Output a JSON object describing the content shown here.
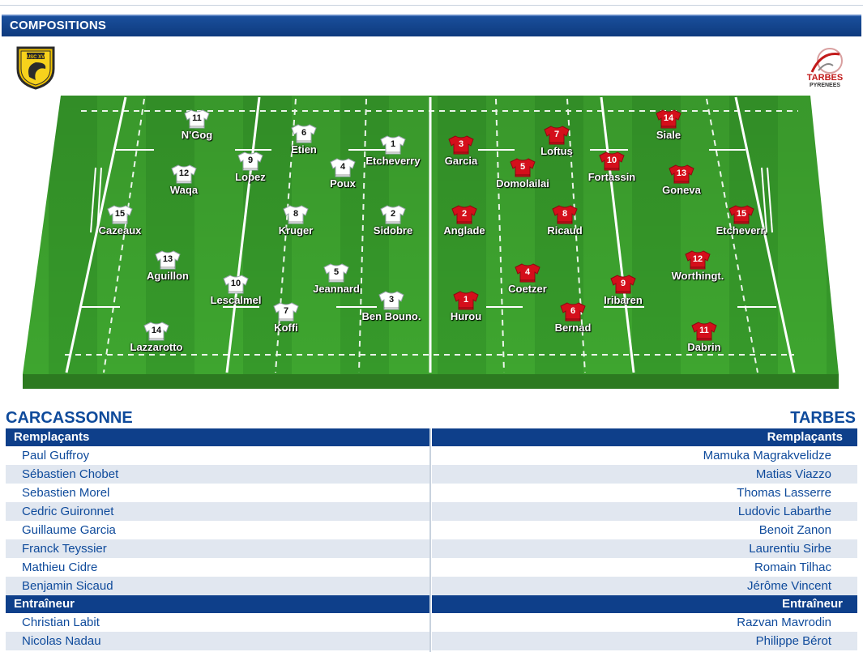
{
  "header": {
    "title": "COMPOSITIONS"
  },
  "logos": {
    "home": {
      "icon": "usc-xv-shield-logo",
      "text": "USC XV"
    },
    "away": {
      "icon": "tarbes-pyrenees-logo",
      "text_line1": "TARBES",
      "text_line2": "PYRENEES"
    }
  },
  "colors": {
    "home_jersey": "#ffffff",
    "away_jersey": "#d40f1b",
    "pitch": "#3aa12e",
    "header": "#0e3f8a"
  },
  "home_players": [
    {
      "num": "11",
      "name": "N'Gog"
    },
    {
      "num": "6",
      "name": "Etien"
    },
    {
      "num": "9",
      "name": "Lopez"
    },
    {
      "num": "12",
      "name": "Waqa"
    },
    {
      "num": "4",
      "name": "Poux"
    },
    {
      "num": "1",
      "name": "Etcheverry"
    },
    {
      "num": "15",
      "name": "Cazeaux"
    },
    {
      "num": "8",
      "name": "Kruger"
    },
    {
      "num": "2",
      "name": "Sidobre"
    },
    {
      "num": "13",
      "name": "Aguillon"
    },
    {
      "num": "5",
      "name": "Jeannard"
    },
    {
      "num": "10",
      "name": "Lescalmel"
    },
    {
      "num": "7",
      "name": "Koffi"
    },
    {
      "num": "3",
      "name": "Ben Bouno."
    },
    {
      "num": "14",
      "name": "Lazzarotto"
    }
  ],
  "away_players": [
    {
      "num": "3",
      "name": "Garcia"
    },
    {
      "num": "7",
      "name": "Loftus"
    },
    {
      "num": "14",
      "name": "Siale"
    },
    {
      "num": "5",
      "name": "Domolailai"
    },
    {
      "num": "10",
      "name": "Fortassin"
    },
    {
      "num": "13",
      "name": "Goneva"
    },
    {
      "num": "2",
      "name": "Anglade"
    },
    {
      "num": "8",
      "name": "Ricaud"
    },
    {
      "num": "15",
      "name": "Etcheverr."
    },
    {
      "num": "4",
      "name": "Coetzer"
    },
    {
      "num": "12",
      "name": "Worthingt."
    },
    {
      "num": "1",
      "name": "Hurou"
    },
    {
      "num": "9",
      "name": "Iribaren"
    },
    {
      "num": "6",
      "name": "Bernad"
    },
    {
      "num": "11",
      "name": "Dabrin"
    }
  ],
  "home": {
    "team": "CARCASSONNE",
    "subs_label": "Remplaçants",
    "subs": [
      "Paul Guffroy",
      "Sébastien Chobet",
      "Sebastien Morel",
      "Cedric Guironnet",
      "Guillaume Garcia",
      "Franck Teyssier",
      "Mathieu Cidre",
      "Benjamin Sicaud"
    ],
    "coach_label": "Entraîneur",
    "coaches": [
      "Christian Labit",
      "Nicolas Nadau"
    ]
  },
  "away": {
    "team": "TARBES",
    "subs_label": "Remplaçants",
    "subs": [
      "Mamuka Magrakvelidze",
      "Matias Viazzo",
      "Thomas Lasserre",
      "Ludovic Labarthe",
      "Benoit Zanon",
      "Laurentiu Sirbe",
      "Romain Tilhac",
      "Jérôme Vincent"
    ],
    "coach_label": "Entraîneur",
    "coaches": [
      "Razvan Mavrodin",
      "Philippe Bérot"
    ]
  }
}
